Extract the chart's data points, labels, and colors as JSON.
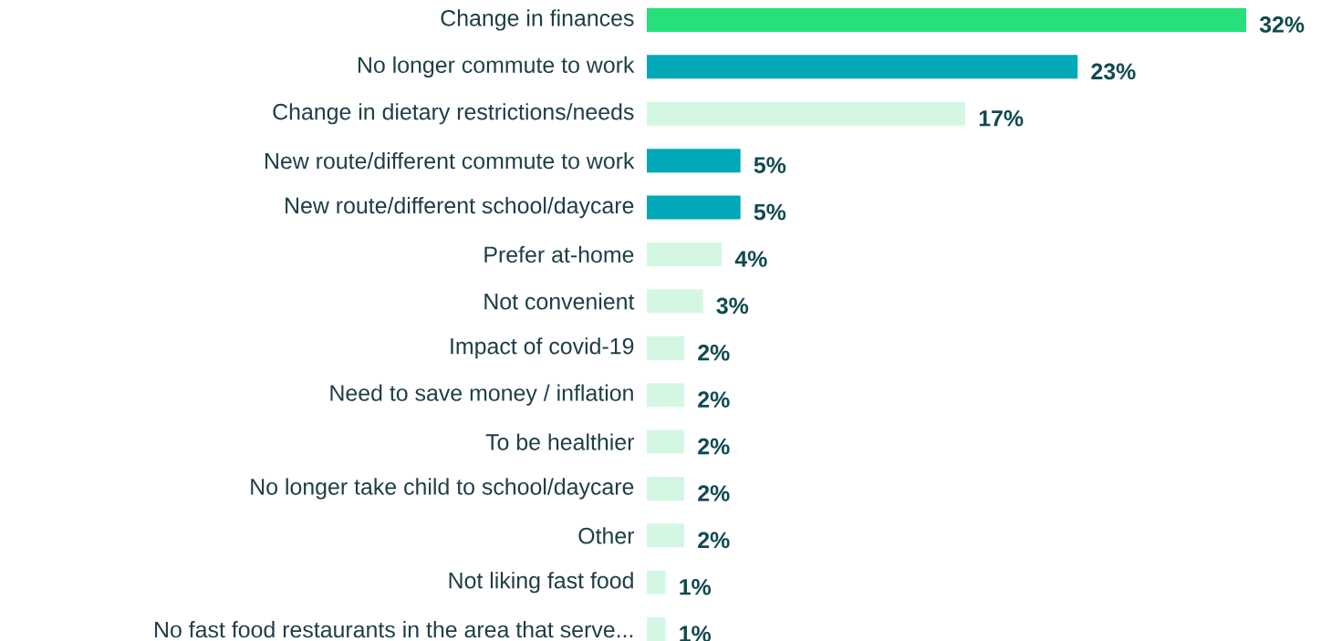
{
  "chart_data": {
    "type": "bar",
    "orientation": "horizontal",
    "categories": [
      "Change in finances",
      "No longer commute to work",
      "Change in dietary restrictions/needs",
      "New route/different commute to work",
      "New route/different school/daycare",
      "Prefer at-home",
      "Not convenient",
      "Impact of covid-19",
      "Need to save money / inflation",
      "To be healthier",
      "No longer take child to school/daycare",
      "Other",
      "Not liking fast food",
      "No fast food restaurants in the area that serve..."
    ],
    "values": [
      32,
      23,
      17,
      5,
      5,
      4,
      3,
      2,
      2,
      2,
      2,
      2,
      1,
      1
    ],
    "value_labels": [
      "32%",
      "23%",
      "17%",
      "5%",
      "5%",
      "4%",
      "3%",
      "2%",
      "2%",
      "2%",
      "2%",
      "2%",
      "1%",
      "1%"
    ],
    "colors": [
      "#26e07a",
      "#00a8b8",
      "#d4f7e3",
      "#00a8b8",
      "#00a8b8",
      "#d4f7e3",
      "#d4f7e3",
      "#d4f7e3",
      "#d4f7e3",
      "#d4f7e3",
      "#d4f7e3",
      "#d4f7e3",
      "#d4f7e3",
      "#d4f7e3"
    ]
  }
}
